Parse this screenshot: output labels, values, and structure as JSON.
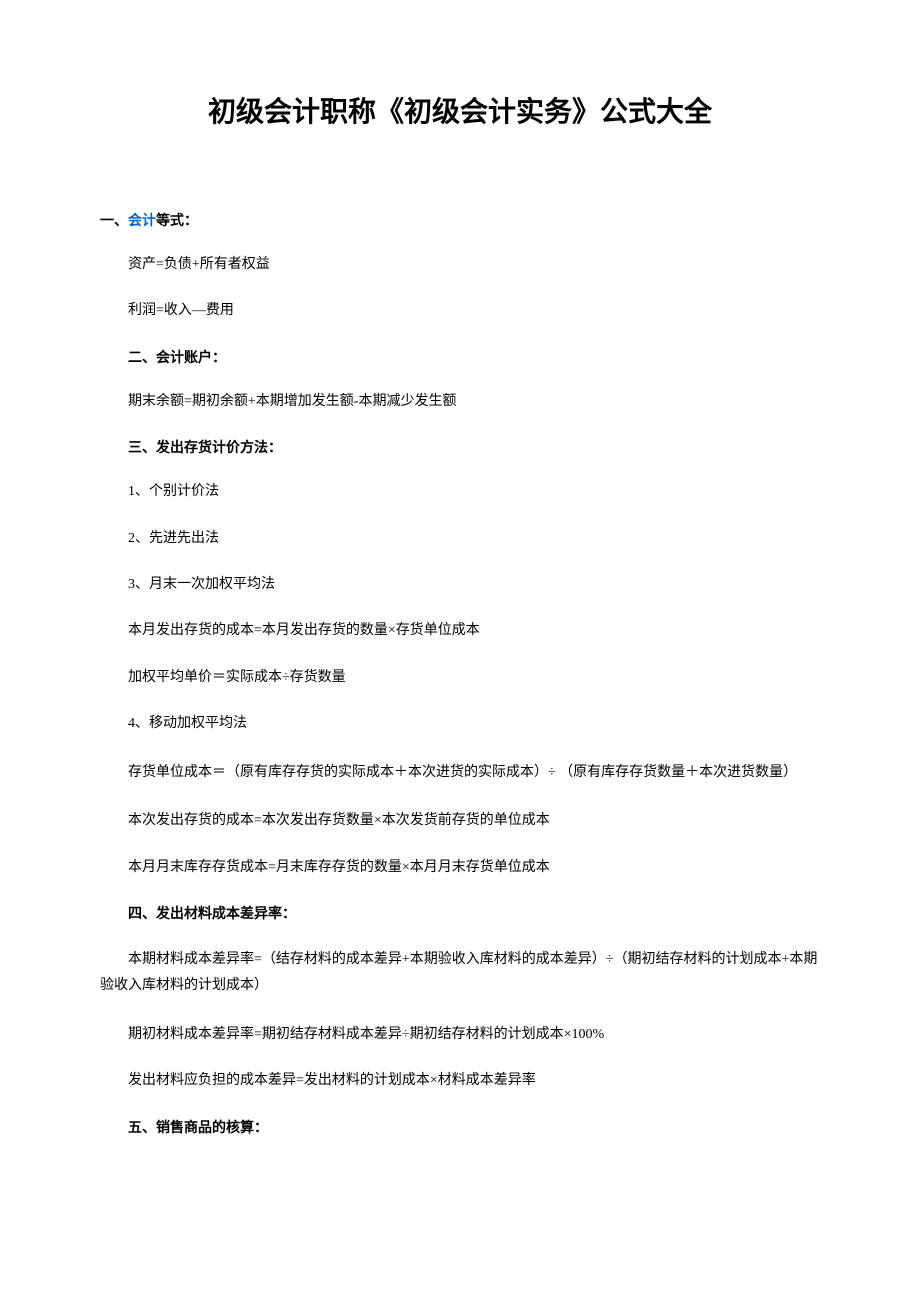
{
  "title": "初级会计职称《初级会计实务》公式大全",
  "sections": {
    "s1": {
      "prefix": "一、",
      "link": "会计",
      "suffix": "等式：",
      "lines": [
        "资产=负债+所有者权益",
        "利润=收入—费用"
      ]
    },
    "s2": {
      "header": "二、会计账户：",
      "lines": [
        "期末余额=期初余额+本期增加发生额-本期减少发生额"
      ]
    },
    "s3": {
      "header": "三、发出存货计价方法：",
      "lines": [
        "1、个别计价法",
        "2、先进先出法",
        "3、月末一次加权平均法",
        "本月发出存货的成本=本月发出存货的数量×存货单位成本",
        "加权平均单价＝实际成本÷存货数量",
        "4、移动加权平均法",
        "存货单位成本＝（原有库存存货的实际成本＋本次进货的实际成本）÷ （原有库存存货数量＋本次进货数量）",
        "本次发出存货的成本=本次发出存货数量×本次发货前存货的单位成本",
        "本月月末库存存货成本=月末库存存货的数量×本月月末存货单位成本"
      ]
    },
    "s4": {
      "header": "四、发出材料成本差异率：",
      "lines": [
        "本期材料成本差异率=（结存材料的成本差异+本期验收入库材料的成本差异）÷（期初结存材料的计划成本+本期验收入库材料的计划成本）",
        "期初材料成本差异率=期初结存材料成本差异÷期初结存材料的计划成本×100%",
        "发出材料应负担的成本差异=发出材料的计划成本×材料成本差异率"
      ]
    },
    "s5": {
      "header": "五、销售商品的核算："
    }
  }
}
